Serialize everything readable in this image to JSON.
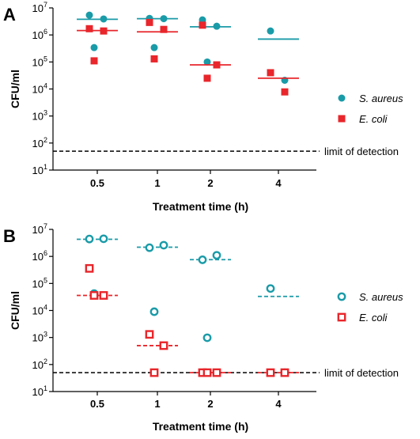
{
  "chart_data": [
    {
      "panel": "A",
      "type": "scatter",
      "ylabel": "CFU/ml",
      "xlabel": "Treatment time (h)",
      "y_scale": "log",
      "ylim": [
        10,
        10000000
      ],
      "yticks": [
        "10^1",
        "10^2",
        "10^3",
        "10^4",
        "10^5",
        "10^6",
        "10^7"
      ],
      "categories": [
        "0.5",
        "1",
        "2",
        "4"
      ],
      "annotation": "limit of detection",
      "detection_limit": 50,
      "legend_position": "right",
      "series": [
        {
          "name": "S. aureus",
          "marker": "filled-circle",
          "line_style": "solid",
          "color": "#1a9ba8",
          "points": [
            [
              0,
              5400000
            ],
            [
              0,
              3900000
            ],
            [
              0,
              340000
            ],
            [
              1,
              4100000
            ],
            [
              1,
              4000000
            ],
            [
              1,
              340000
            ],
            [
              2,
              3600000
            ],
            [
              2,
              2100000
            ],
            [
              2,
              100000
            ],
            [
              3,
              1400000
            ],
            [
              3,
              21000
            ]
          ],
          "means": [
            3800000,
            4000000,
            2000000,
            700000
          ]
        },
        {
          "name": "E. coli",
          "marker": "filled-square",
          "line_style": "solid",
          "color": "#e8262b",
          "points": [
            [
              0,
              1700000
            ],
            [
              0,
              1400000
            ],
            [
              0,
              110000
            ],
            [
              1,
              2900000
            ],
            [
              1,
              1600000
            ],
            [
              1,
              130000
            ],
            [
              2,
              2300000
            ],
            [
              2,
              78000
            ],
            [
              2,
              25000
            ],
            [
              3,
              40000
            ],
            [
              3,
              7800
            ]
          ],
          "means": [
            1450000,
            1300000,
            78000,
            25000
          ]
        }
      ]
    },
    {
      "panel": "B",
      "type": "scatter",
      "ylabel": "CFU/ml",
      "xlabel": "Treatment time (h)",
      "y_scale": "log",
      "ylim": [
        10,
        10000000
      ],
      "yticks": [
        "10^1",
        "10^2",
        "10^3",
        "10^4",
        "10^5",
        "10^6",
        "10^7"
      ],
      "categories": [
        "0.5",
        "1",
        "2",
        "4"
      ],
      "annotation": "limit of detection",
      "detection_limit": 50,
      "legend_position": "right",
      "series": [
        {
          "name": "S. aureus",
          "marker": "open-circle",
          "line_style": "dashed",
          "color": "#1a9ba8",
          "points": [
            [
              0,
              4400000
            ],
            [
              0,
              4500000
            ],
            [
              0,
              42000
            ],
            [
              1,
              2100000
            ],
            [
              1,
              2600000
            ],
            [
              1,
              9000
            ],
            [
              2,
              750000
            ],
            [
              2,
              1100000
            ],
            [
              2,
              980
            ],
            [
              3,
              65000
            ],
            [
              3,
              50
            ]
          ],
          "means": [
            4300000,
            2200000,
            760000,
            33000
          ]
        },
        {
          "name": "E. coli",
          "marker": "open-square",
          "line_style": "dashed",
          "color": "#e8262b",
          "points": [
            [
              0,
              360000
            ],
            [
              0,
              36000
            ],
            [
              0,
              36000
            ],
            [
              1,
              1300
            ],
            [
              1,
              500
            ],
            [
              1,
              50
            ],
            [
              2,
              50
            ],
            [
              2,
              50
            ],
            [
              2,
              50
            ],
            [
              3,
              50
            ],
            [
              3,
              50
            ]
          ],
          "means": [
            36000,
            500,
            50,
            50
          ]
        }
      ]
    }
  ]
}
